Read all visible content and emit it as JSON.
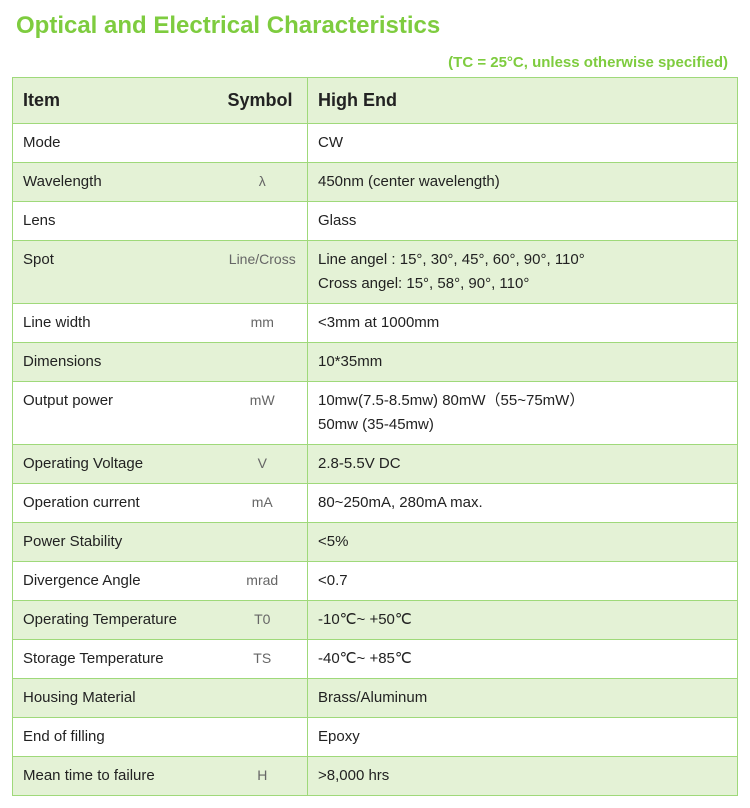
{
  "colors": {
    "title": "#7ecc3f",
    "subtitle": "#7ecc3f",
    "border": "#9fd97a",
    "header_bg": "#e4f2d6",
    "row_even_bg": "#e4f2d6",
    "row_odd_bg": "#ffffff",
    "text": "#222222",
    "symbol_text": "#666666"
  },
  "title": "Optical and Electrical Characteristics",
  "subtitle": "(TC = 25°C, unless otherwise specified)",
  "table": {
    "headers": {
      "item": "Item",
      "symbol": "Symbol",
      "value": "High End"
    },
    "rows": [
      {
        "item": "Mode",
        "symbol": "",
        "value": "CW"
      },
      {
        "item": "Wavelength",
        "symbol": "λ",
        "value": "450nm (center wavelength)"
      },
      {
        "item": "Lens",
        "symbol": "",
        "value": "Glass"
      },
      {
        "item": "Spot",
        "symbol": "Line/Cross",
        "value": "Line angel : 15°, 30°, 45°, 60°, 90°, 110°\nCross angel: 15°, 58°, 90°, 110°"
      },
      {
        "item": "Line width",
        "symbol": "mm",
        "value": "<3mm at 1000mm"
      },
      {
        "item": "Dimensions",
        "symbol": "",
        "value": "10*35mm"
      },
      {
        "item": "Output power",
        "symbol": "mW",
        "value": "10mw(7.5-8.5mw)    80mW（55~75mW）\n50mw (35-45mw)"
      },
      {
        "item": "Operating Voltage",
        "symbol": "V",
        "value": "2.8-5.5V DC"
      },
      {
        "item": "Operation current",
        "symbol": "mA",
        "value": "80~250mA, 280mA max."
      },
      {
        "item": "Power Stability",
        "symbol": "",
        "value": "<5%"
      },
      {
        "item": "Divergence Angle",
        "symbol": "mrad",
        "value": "<0.7"
      },
      {
        "item": "Operating Temperature",
        "symbol": "T0",
        "value": "-10℃~ +50℃"
      },
      {
        "item": "Storage Temperature",
        "symbol": "TS",
        "value": "-40℃~ +85℃"
      },
      {
        "item": "Housing Material",
        "symbol": "",
        "value": "Brass/Aluminum"
      },
      {
        "item": "End of filling",
        "symbol": "",
        "value": "Epoxy"
      },
      {
        "item": "Mean time to failure",
        "symbol": "H",
        "value": ">8,000 hrs"
      }
    ]
  }
}
